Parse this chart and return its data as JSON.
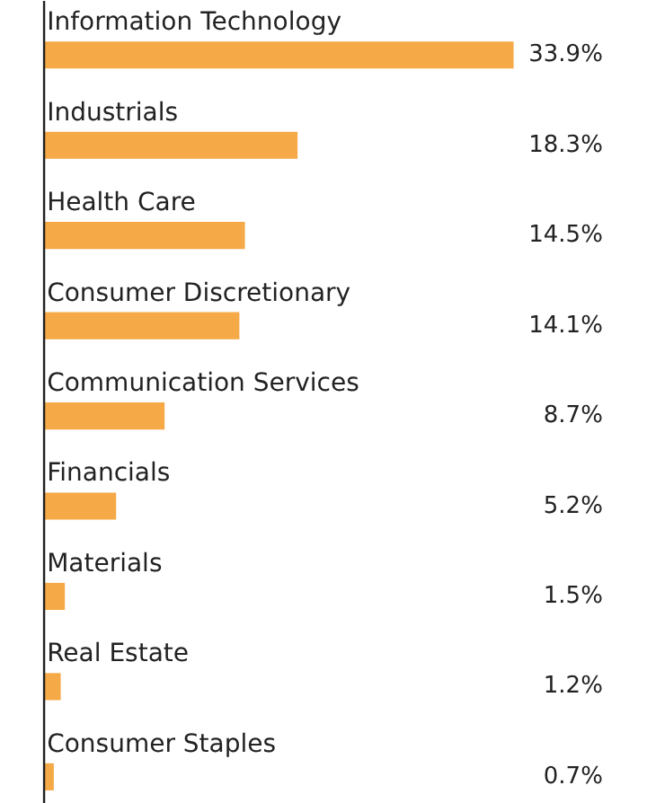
{
  "chart_data": {
    "type": "bar",
    "orientation": "horizontal",
    "data_labels": true,
    "color": "#f5a947",
    "categories": [
      "Information Technology",
      "Industrials",
      "Health Care",
      "Consumer Discretionary",
      "Communication Services",
      "Financials",
      "Materials",
      "Real Estate",
      "Consumer Staples"
    ],
    "values": [
      33.9,
      18.3,
      14.5,
      14.1,
      8.7,
      5.2,
      1.5,
      1.2,
      0.7
    ],
    "value_labels": [
      "33.9%",
      "18.3%",
      "14.5%",
      "14.1%",
      "8.7%",
      "5.2%",
      "1.5%",
      "1.2%",
      "0.7%"
    ]
  }
}
